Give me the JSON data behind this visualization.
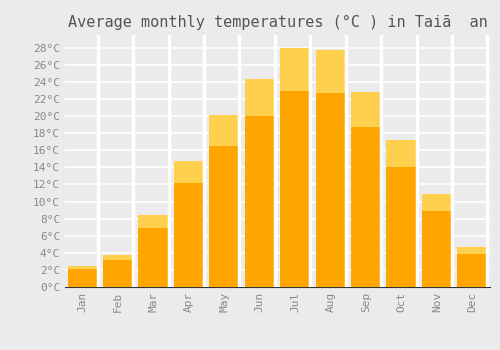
{
  "title": "Average monthly temperatures (°C ) in Taiā  an",
  "months": [
    "Jan",
    "Feb",
    "Mar",
    "Apr",
    "May",
    "Jun",
    "Jul",
    "Aug",
    "Sep",
    "Oct",
    "Nov",
    "Dec"
  ],
  "temperatures": [
    2.5,
    3.8,
    8.4,
    14.8,
    20.1,
    24.4,
    28.0,
    27.7,
    22.8,
    17.2,
    10.9,
    4.7
  ],
  "bar_color_main": "#FFA500",
  "bar_color_light": "#FFD04D",
  "ylim": [
    0,
    29.5
  ],
  "yticks": [
    0,
    2,
    4,
    6,
    8,
    10,
    12,
    14,
    16,
    18,
    20,
    22,
    24,
    26,
    28
  ],
  "background_color": "#ebebeb",
  "grid_color": "#ffffff",
  "title_fontsize": 11,
  "tick_fontsize": 8,
  "label_color": "#888888",
  "title_color": "#555555"
}
